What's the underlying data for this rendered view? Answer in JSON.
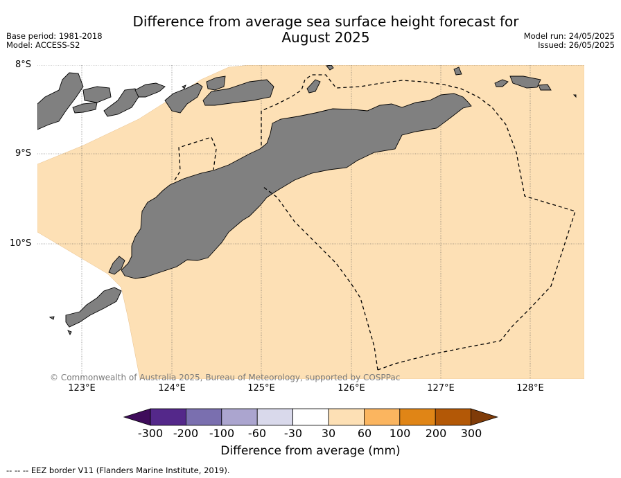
{
  "title_line1": "Difference from average sea surface height forecast for",
  "title_line2": "August 2025",
  "base_period": "Base period: 1981-2018",
  "model": "Model: ACCESS-S2",
  "model_run": "Model run: 24/05/2025",
  "issued": "Issued: 26/05/2025",
  "lat_labels": [
    "8°S",
    "9°S",
    "10°S"
  ],
  "lon_labels": [
    "123°E",
    "124°E",
    "125°E",
    "126°E",
    "127°E",
    "128°E"
  ],
  "copyright": "© Commonwealth of Australia 2025, Bureau of Meteorology, supported by COSPPac",
  "colorbar": {
    "ticks": [
      "-300",
      "-200",
      "-100",
      "-60",
      "-30",
      "30",
      "60",
      "100",
      "200",
      "300"
    ],
    "colors": [
      "#3f0c5b",
      "#54288a",
      "#7a6faf",
      "#aba5cf",
      "#d9d9eb",
      "#ffffff",
      "#fde0b5",
      "#fbb55f",
      "#e08516",
      "#b35806",
      "#7f3b08"
    ],
    "title": "Difference from average (mm)"
  },
  "legend_footnote": "--  --  -- EEZ border V11 (Flanders Marine Institute, 2019).",
  "colors": {
    "ocean_fill": "#fde0b5",
    "land": "#808080",
    "outside": "#ffffff"
  }
}
